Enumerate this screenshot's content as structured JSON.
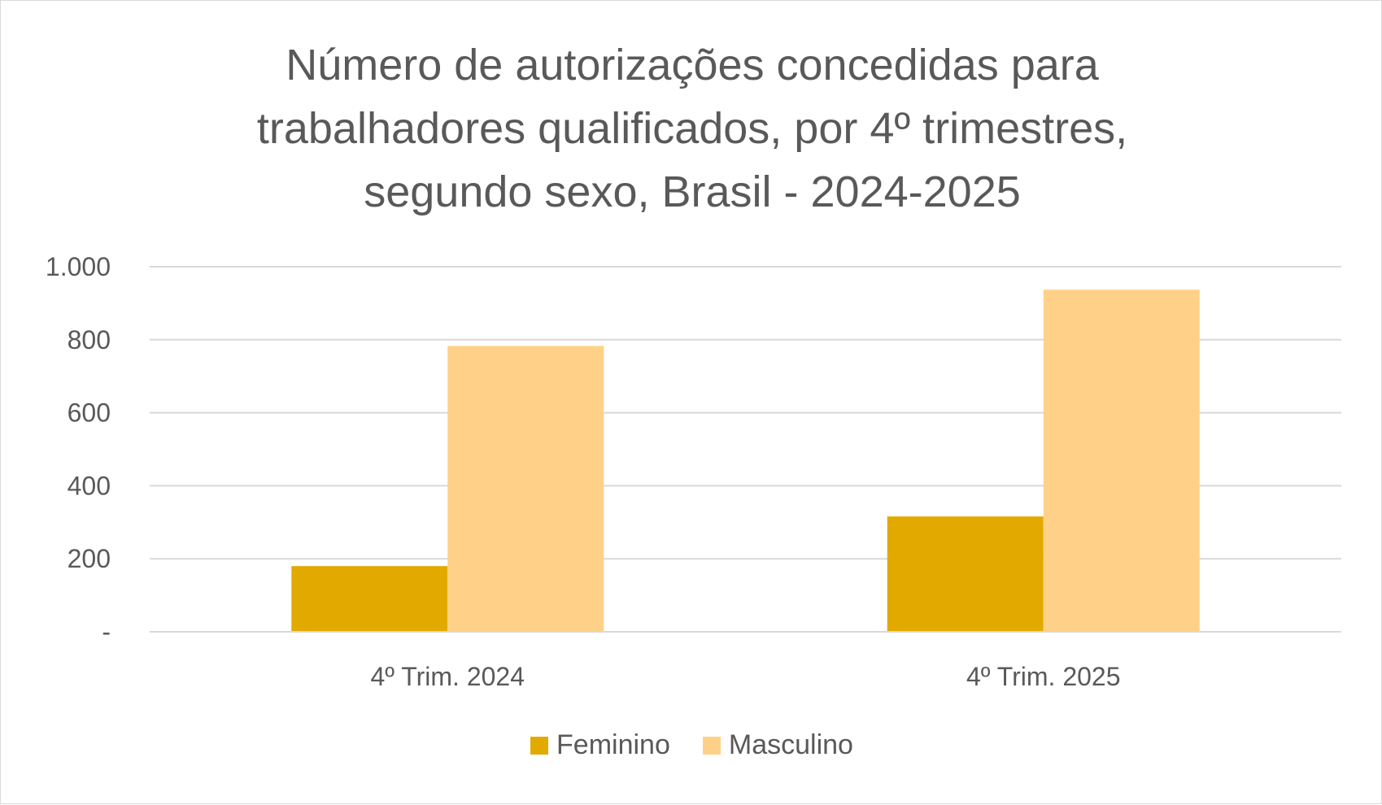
{
  "chart_data": {
    "type": "bar",
    "title": "Número de autorizações concedidas para trabalhadores qualificados, por 4º trimestres, segundo sexo, Brasil - 2024-2025",
    "title_lines": [
      "Número de autorizações concedidas para",
      "trabalhadores qualificados, por 4º trimestres,",
      "segundo sexo, Brasil - 2024-2025"
    ],
    "categories": [
      "4º Trim. 2024",
      "4º Trim. 2025"
    ],
    "series": [
      {
        "name": "Feminino",
        "color": "#E2AA00",
        "values": [
          180,
          316
        ]
      },
      {
        "name": "Masculino",
        "color": "#FFD188",
        "values": [
          783,
          937
        ]
      }
    ],
    "ylim": [
      0,
      1000
    ],
    "yticks": [
      0,
      200,
      400,
      600,
      800,
      1000
    ],
    "ytick_labels": [
      "-",
      "200",
      "400",
      "600",
      "800",
      "1.000"
    ],
    "xlabel": "",
    "ylabel": "",
    "grid": true,
    "legend_position": "bottom",
    "gridline_color": "#d9d9d9",
    "text_color": "#595959"
  }
}
